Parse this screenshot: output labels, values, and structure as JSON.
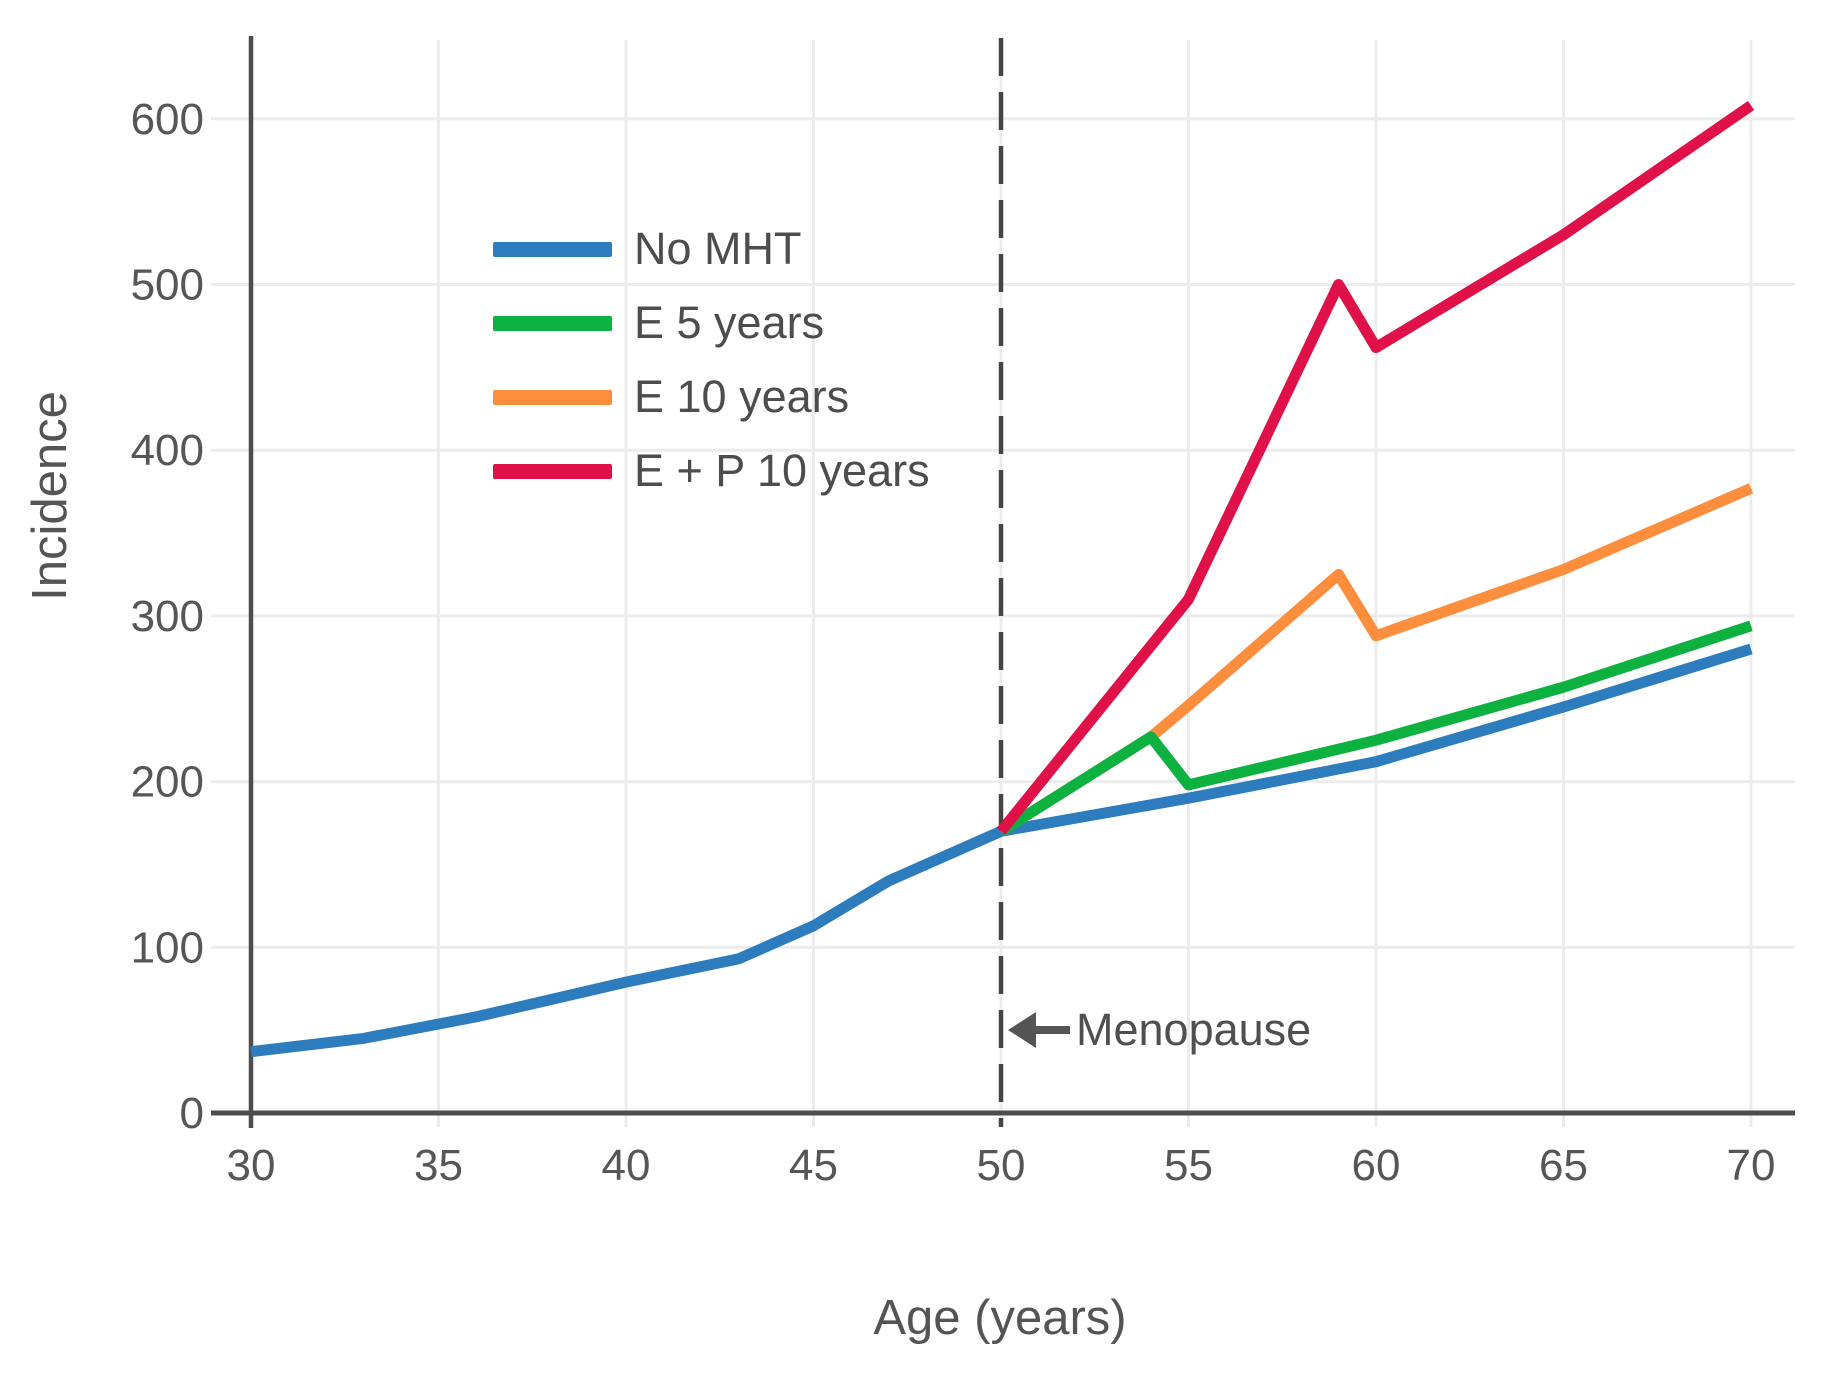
{
  "chart_data": {
    "type": "line",
    "title": "",
    "xlabel": "Age (years)",
    "ylabel": "Incidence",
    "x_ticks": [
      30,
      35,
      40,
      45,
      50,
      55,
      60,
      65,
      70
    ],
    "y_ticks": [
      0,
      100,
      200,
      300,
      400,
      500,
      600
    ],
    "xlim": [
      30,
      71.2
    ],
    "ylim": [
      0,
      648
    ],
    "grid": true,
    "legend_position": "upper-left-inside",
    "reference_line": {
      "x": 50,
      "style": "dashed",
      "color": "#454545"
    },
    "annotation": {
      "label": "Menopause",
      "arrow": "left",
      "x": 50.3,
      "y": 50
    },
    "series": [
      {
        "name": "No MHT",
        "color": "#2d7cbd",
        "points": [
          [
            30,
            37
          ],
          [
            33,
            45
          ],
          [
            36,
            58
          ],
          [
            40,
            79
          ],
          [
            43,
            93
          ],
          [
            45,
            113
          ],
          [
            47,
            140
          ],
          [
            50,
            170
          ],
          [
            55,
            190
          ],
          [
            60,
            212
          ],
          [
            65,
            245
          ],
          [
            70,
            280
          ]
        ]
      },
      {
        "name": "E 5 years",
        "color": "#0cb140",
        "points": [
          [
            50,
            170
          ],
          [
            54,
            227
          ],
          [
            55,
            198
          ],
          [
            60,
            225
          ],
          [
            65,
            257
          ],
          [
            70,
            294
          ]
        ]
      },
      {
        "name": "E 10 years",
        "color": "#fd8e3e",
        "points": [
          [
            50,
            170
          ],
          [
            54,
            227
          ],
          [
            55,
            246
          ],
          [
            59,
            325
          ],
          [
            60,
            288
          ],
          [
            65,
            328
          ],
          [
            70,
            377
          ]
        ]
      },
      {
        "name": "E + P 10 years",
        "color": "#e01148",
        "points": [
          [
            50,
            170
          ],
          [
            55,
            310
          ],
          [
            59,
            500
          ],
          [
            60,
            462
          ],
          [
            65,
            530
          ],
          [
            70,
            608
          ]
        ]
      }
    ],
    "colors": {
      "grid": "#ececec",
      "spine": "#4d4d4d",
      "tick_text": "#565656",
      "annotation_text": "#4f4f4f"
    }
  }
}
